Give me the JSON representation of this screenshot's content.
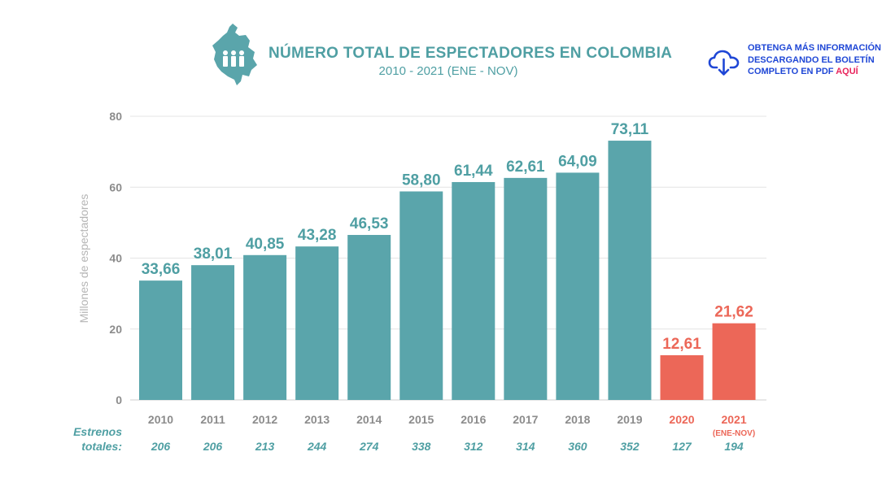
{
  "header": {
    "title": "NÚMERO TOTAL DE ESPECTADORES EN COLOMBIA",
    "subtitle": "2010 - 2021 (ENE - NOV)",
    "icon": "colombia-map-people-icon"
  },
  "download": {
    "line1": "OBTENGA MÁS INFORMACIÓN",
    "line2": "DESCARGANDO EL BOLETÍN",
    "line3_prefix": "COMPLETO EN PDF ",
    "line3_link": "AQUÍ",
    "icon": "cloud-download-icon",
    "color": "#1f47d6",
    "link_color": "#e8245c"
  },
  "chart_data": {
    "type": "bar",
    "title": "NÚMERO TOTAL DE ESPECTADORES EN COLOMBIA",
    "subtitle": "2010 - 2021 (ENE - NOV)",
    "ylabel": "Millones de espectadores",
    "xlabel": "",
    "ylim": [
      0,
      80
    ],
    "yticks": [
      "0",
      "20",
      "40",
      "60",
      "80"
    ],
    "grid": true,
    "categories": [
      "2010",
      "2011",
      "2012",
      "2013",
      "2014",
      "2015",
      "2016",
      "2017",
      "2018",
      "2019",
      "2020",
      "2021"
    ],
    "category_notes": [
      "",
      "",
      "",
      "",
      "",
      "",
      "",
      "",
      "",
      "",
      "",
      "(ENE-NOV)"
    ],
    "values": [
      33.66,
      38.01,
      40.85,
      43.28,
      46.53,
      58.8,
      61.44,
      62.61,
      64.09,
      73.11,
      12.61,
      21.62
    ],
    "value_labels": [
      "33,66",
      "38,01",
      "40,85",
      "43,28",
      "46,53",
      "58,80",
      "61,44",
      "62,61",
      "64,09",
      "73,11",
      "12,61",
      "21,62"
    ],
    "highlighted": [
      false,
      false,
      false,
      false,
      false,
      false,
      false,
      false,
      false,
      false,
      true,
      true
    ],
    "colors": {
      "normal": "#5aa5ab",
      "highlight": "#ec6758",
      "normal_text": "#4f9fa3",
      "year_text": "#8c8c8c"
    },
    "estrenos": {
      "label_line1": "Estrenos",
      "label_line2": "totales:",
      "values": [
        "206",
        "206",
        "213",
        "244",
        "274",
        "338",
        "312",
        "314",
        "360",
        "352",
        "127",
        "194"
      ]
    }
  }
}
